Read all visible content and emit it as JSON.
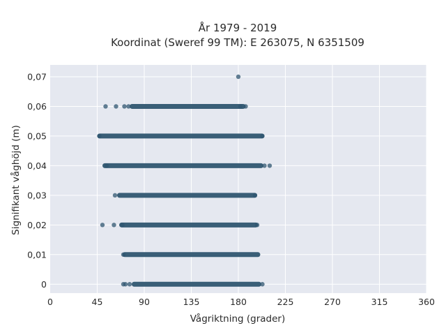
{
  "chart_data": {
    "type": "scatter",
    "title_line1": "År 1979 - 2019",
    "title_line2": "Koordinat (Sweref 99 TM): E 263075, N 6351509",
    "xlabel": "Vågriktning (grader)",
    "ylabel": "Signifikant våghöjd (m)",
    "xlim": [
      0,
      360
    ],
    "ylim": [
      -0.003,
      0.074
    ],
    "x_ticks": [
      0,
      45,
      90,
      135,
      180,
      225,
      270,
      315,
      360
    ],
    "x_tick_labels": [
      "0",
      "45",
      "90",
      "135",
      "180",
      "225",
      "270",
      "315",
      "360"
    ],
    "y_ticks": [
      0,
      0.01,
      0.02,
      0.03,
      0.04,
      0.05,
      0.06,
      0.07
    ],
    "y_tick_labels": [
      "0",
      "0,01",
      "0,02",
      "0,03",
      "0,04",
      "0,05",
      "0,06",
      "0,07"
    ],
    "grid": true,
    "colors": {
      "marker": "#2f5670",
      "plot_bg": "#e5e8f0",
      "grid": "#ffffff"
    },
    "series": [
      {
        "bands": [
          {
            "y": 0.0,
            "x_min": 80,
            "x_max": 200
          },
          {
            "y": 0.01,
            "x_min": 71,
            "x_max": 199
          },
          {
            "y": 0.02,
            "x_min": 68,
            "x_max": 197
          },
          {
            "y": 0.03,
            "x_min": 66,
            "x_max": 196
          },
          {
            "y": 0.04,
            "x_min": 52,
            "x_max": 202
          },
          {
            "y": 0.05,
            "x_min": 47,
            "x_max": 203
          },
          {
            "y": 0.06,
            "x_min": 78,
            "x_max": 185
          }
        ],
        "points": [
          {
            "x": 70,
            "y": 0.0
          },
          {
            "x": 72,
            "y": 0.0
          },
          {
            "x": 76,
            "y": 0.0
          },
          {
            "x": 203,
            "y": 0.0
          },
          {
            "x": 70,
            "y": 0.01
          },
          {
            "x": 50,
            "y": 0.02
          },
          {
            "x": 61,
            "y": 0.02
          },
          {
            "x": 69,
            "y": 0.02
          },
          {
            "x": 198,
            "y": 0.02
          },
          {
            "x": 62,
            "y": 0.03
          },
          {
            "x": 196,
            "y": 0.03
          },
          {
            "x": 54,
            "y": 0.04
          },
          {
            "x": 205,
            "y": 0.04
          },
          {
            "x": 210,
            "y": 0.04
          },
          {
            "x": 47,
            "y": 0.05
          },
          {
            "x": 203,
            "y": 0.05
          },
          {
            "x": 53,
            "y": 0.06
          },
          {
            "x": 63,
            "y": 0.06
          },
          {
            "x": 71,
            "y": 0.06
          },
          {
            "x": 75,
            "y": 0.06
          },
          {
            "x": 182,
            "y": 0.06
          },
          {
            "x": 187,
            "y": 0.06
          },
          {
            "x": 180,
            "y": 0.07
          }
        ]
      }
    ]
  }
}
